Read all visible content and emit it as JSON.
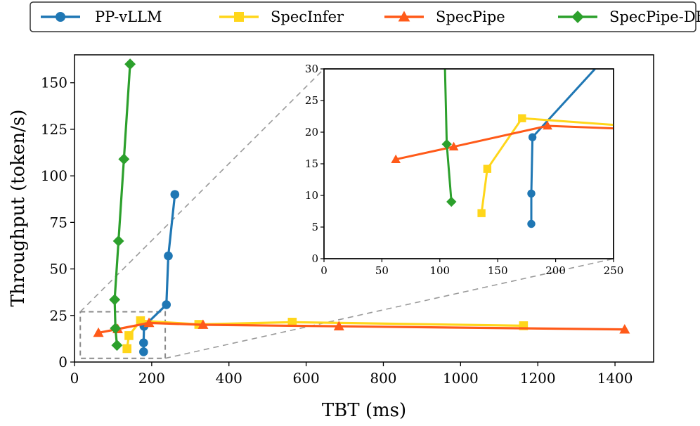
{
  "chart_data": {
    "type": "line",
    "title": "",
    "xlabel": "TBT (ms)",
    "ylabel": "Throughput (token/s)",
    "xlim": [
      0,
      1500
    ],
    "ylim": [
      0,
      165
    ],
    "xticks": [
      0,
      200,
      400,
      600,
      800,
      1000,
      1200,
      1400
    ],
    "yticks": [
      0,
      25,
      50,
      75,
      100,
      125,
      150
    ],
    "legend_position": "top",
    "series": [
      {
        "name": "PP-vLLM",
        "color": "#1f77b4",
        "marker": "circle",
        "points": [
          [
            179,
            5.5
          ],
          [
            179,
            10.3
          ],
          [
            180,
            19.2
          ],
          [
            238,
            30.8
          ],
          [
            243,
            57
          ],
          [
            260,
            90
          ]
        ]
      },
      {
        "name": "SpecInfer",
        "color": "#ffd61a",
        "marker": "square",
        "points": [
          [
            136,
            7.2
          ],
          [
            141,
            14.2
          ],
          [
            171,
            22.2
          ],
          [
            322,
            20.2
          ],
          [
            564,
            21.4
          ],
          [
            1163,
            19.5
          ]
        ]
      },
      {
        "name": "SpecPipe",
        "color": "#ff5a19",
        "marker": "triangle",
        "points": [
          [
            62,
            15.7
          ],
          [
            112,
            17.7
          ],
          [
            193,
            21
          ],
          [
            333,
            20
          ],
          [
            685,
            19.2
          ],
          [
            1425,
            17.5
          ]
        ]
      },
      {
        "name": "SpecPipe-DB",
        "color": "#2ca02c",
        "marker": "diamond",
        "points": [
          [
            110,
            9
          ],
          [
            106,
            18.1
          ],
          [
            104,
            33.5
          ],
          [
            114,
            65
          ],
          [
            128,
            109
          ],
          [
            144,
            160
          ]
        ]
      }
    ],
    "inset": {
      "xlim": [
        0,
        250
      ],
      "ylim": [
        0,
        30
      ],
      "xticks": [
        0,
        50,
        100,
        150,
        200,
        250
      ],
      "yticks": [
        0,
        5,
        10,
        15,
        20,
        25,
        30
      ],
      "zoom_box": {
        "x": [
          15,
          235
        ],
        "y": [
          2,
          27
        ]
      }
    }
  }
}
